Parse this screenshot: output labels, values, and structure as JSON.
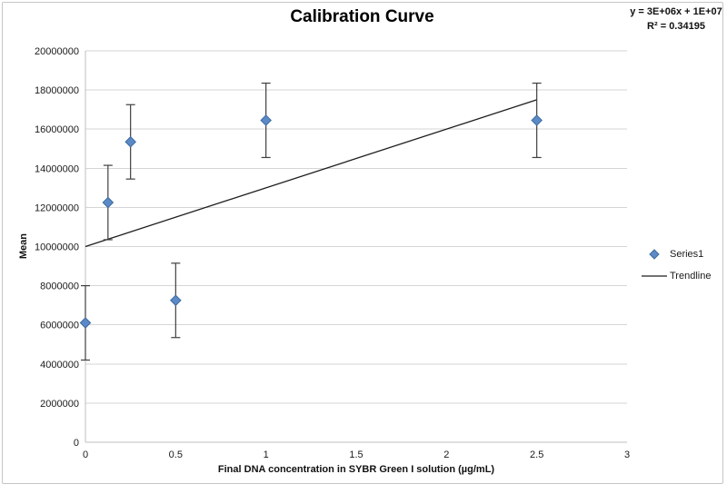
{
  "style": {
    "background": "#ffffff",
    "frame_border": "#c6c6c6",
    "gridline_color": "#d5d5d5",
    "axis_color": "#bfbfbf",
    "error_bar_color": "#3f3f3f",
    "trendline_color": "#1f1f1f",
    "text_color": "#1a1a1a",
    "title_color": "#000000"
  },
  "chart_data": {
    "type": "scatter",
    "title": "Calibration Curve",
    "xlabel": "Final DNA concentration in SYBR Green I solution (µg/mL)",
    "ylabel": "Mean",
    "xlim": [
      0,
      3
    ],
    "ylim": [
      0,
      20000000
    ],
    "x_ticks": [
      0,
      0.5,
      1,
      1.5,
      2,
      2.5,
      3
    ],
    "y_ticks": [
      0,
      2000000,
      4000000,
      6000000,
      8000000,
      10000000,
      12000000,
      14000000,
      16000000,
      18000000,
      20000000
    ],
    "grid": true,
    "legend_position": "right",
    "annotation": {
      "line1": "y = 3E+06x + 1E+07",
      "line2": "R² = 0.34195"
    },
    "series": [
      {
        "name": "Series1",
        "type": "scatter",
        "marker": "diamond",
        "marker_fill": "#5b8ac6",
        "marker_stroke": "#3d6a9e",
        "points": [
          {
            "x": 0,
            "y": 6100000,
            "error": 1900000
          },
          {
            "x": 0.125,
            "y": 12250000,
            "error": 1900000
          },
          {
            "x": 0.25,
            "y": 15350000,
            "error": 1900000
          },
          {
            "x": 0.5,
            "y": 7250000,
            "error": 1900000
          },
          {
            "x": 1,
            "y": 16450000,
            "error": 1900000
          },
          {
            "x": 2.5,
            "y": 16450000,
            "error": 1900000
          }
        ]
      },
      {
        "name": "Trendline",
        "type": "line",
        "color": "#1f1f1f",
        "x": [
          0,
          2.5
        ],
        "y": [
          10000000,
          17500000
        ],
        "equation": "y = 3E+06x + 1E+07",
        "r_squared": 0.34195
      }
    ]
  }
}
